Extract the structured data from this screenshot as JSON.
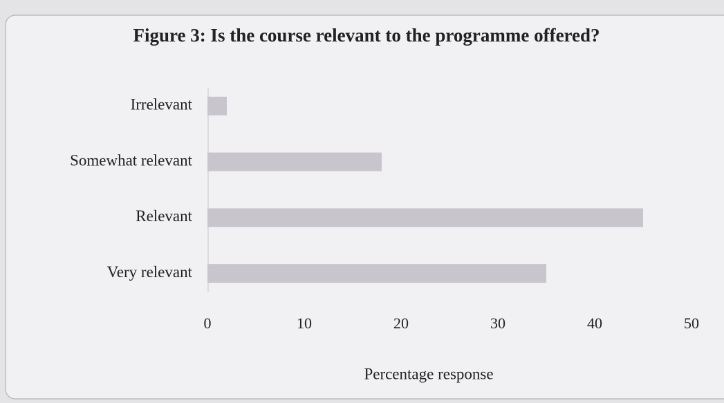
{
  "chart_data": {
    "type": "bar",
    "orientation": "horizontal",
    "title": "Figure 3: Is the course relevant to the programme offered?",
    "categories": [
      "Irrelevant",
      "Somewhat relevant",
      "Relevant",
      "Very relevant"
    ],
    "values": [
      2,
      18,
      45,
      35
    ],
    "color": "#c9c5cd",
    "xlabel": "Percentage response",
    "xlim": [
      0,
      50
    ],
    "xticks": [
      0,
      10,
      20,
      30,
      40,
      50
    ],
    "grid": false
  }
}
